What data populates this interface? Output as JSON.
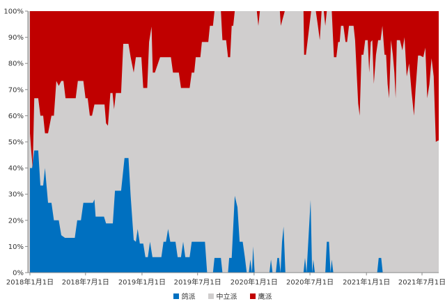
{
  "chart_data": {
    "type": "area",
    "stacked": "percent",
    "y_ticks": [
      "0%",
      "10%",
      "20%",
      "30%",
      "40%",
      "50%",
      "60%",
      "70%",
      "80%",
      "90%",
      "100%"
    ],
    "x_ticks": [
      {
        "label": "2018年1月1日",
        "date": "2018-01-01"
      },
      {
        "label": "2018年7月1日",
        "date": "2018-07-01"
      },
      {
        "label": "2019年1月1日",
        "date": "2019-01-01"
      },
      {
        "label": "2019年7月1日",
        "date": "2019-07-01"
      },
      {
        "label": "2020年1月1日",
        "date": "2020-01-01"
      },
      {
        "label": "2020年7月1日",
        "date": "2020-07-01"
      },
      {
        "label": "2021年1月1日",
        "date": "2021-01-01"
      },
      {
        "label": "2021年7月1日",
        "date": "2021-07-01"
      }
    ],
    "x_range": [
      "2018-01-01",
      "2021-10-01"
    ],
    "y_range": [
      0,
      100
    ],
    "series": [
      {
        "name": "鸽派",
        "color": "#0070C0",
        "points": [
          [
            "2018-01-01",
            40
          ],
          [
            "2018-01-08",
            40
          ],
          [
            "2018-01-15",
            46.7
          ],
          [
            "2018-01-28",
            46.7
          ],
          [
            "2018-02-04",
            33.3
          ],
          [
            "2018-02-13",
            33.3
          ],
          [
            "2018-02-19",
            40
          ],
          [
            "2018-03-01",
            26.7
          ],
          [
            "2018-03-12",
            26.7
          ],
          [
            "2018-03-20",
            20
          ],
          [
            "2018-04-05",
            20
          ],
          [
            "2018-04-13",
            14.3
          ],
          [
            "2018-04-25",
            13.3
          ],
          [
            "2018-05-27",
            13.3
          ],
          [
            "2018-06-04",
            20
          ],
          [
            "2018-06-16",
            20
          ],
          [
            "2018-06-24",
            26.7
          ],
          [
            "2018-07-25",
            26.7
          ],
          [
            "2018-07-30",
            28
          ],
          [
            "2018-08-03",
            21.4
          ],
          [
            "2018-08-30",
            21.4
          ],
          [
            "2018-09-06",
            18.8
          ],
          [
            "2018-09-28",
            18.8
          ],
          [
            "2018-10-05",
            31.3
          ],
          [
            "2018-10-25",
            31.3
          ],
          [
            "2018-11-05",
            43.8
          ],
          [
            "2018-11-18",
            43.8
          ],
          [
            "2018-11-25",
            29.4
          ],
          [
            "2018-12-05",
            12.5
          ],
          [
            "2018-12-12",
            11.8
          ],
          [
            "2018-12-18",
            16.7
          ],
          [
            "2018-12-25",
            11.1
          ],
          [
            "2019-01-05",
            11.1
          ],
          [
            "2019-01-12",
            5.9
          ],
          [
            "2019-01-20",
            5.9
          ],
          [
            "2019-01-27",
            11.8
          ],
          [
            "2019-02-04",
            5.9
          ],
          [
            "2019-03-05",
            5.9
          ],
          [
            "2019-03-12",
            11.8
          ],
          [
            "2019-03-20",
            11.8
          ],
          [
            "2019-03-27",
            16.7
          ],
          [
            "2019-04-03",
            11.8
          ],
          [
            "2019-04-20",
            11.8
          ],
          [
            "2019-04-27",
            5.9
          ],
          [
            "2019-05-08",
            5.9
          ],
          [
            "2019-05-15",
            11.8
          ],
          [
            "2019-05-22",
            5.9
          ],
          [
            "2019-06-05",
            5.9
          ],
          [
            "2019-06-12",
            11.8
          ],
          [
            "2019-07-25",
            11.8
          ],
          [
            "2019-08-01",
            0
          ],
          [
            "2019-08-20",
            0
          ],
          [
            "2019-08-25",
            5.6
          ],
          [
            "2019-09-15",
            5.6
          ],
          [
            "2019-09-20",
            0
          ],
          [
            "2019-10-08",
            0
          ],
          [
            "2019-10-12",
            5.6
          ],
          [
            "2019-10-20",
            5.6
          ],
          [
            "2019-10-30",
            29.4
          ],
          [
            "2019-11-08",
            25
          ],
          [
            "2019-11-15",
            11.8
          ],
          [
            "2019-11-25",
            11.8
          ],
          [
            "2019-12-02",
            5.9
          ],
          [
            "2019-12-08",
            0
          ],
          [
            "2019-12-15",
            0
          ],
          [
            "2019-12-20",
            5
          ],
          [
            "2019-12-25",
            0
          ],
          [
            "2019-12-29",
            10
          ],
          [
            "2020-01-03",
            0
          ],
          [
            "2020-02-20",
            0
          ],
          [
            "2020-02-25",
            5
          ],
          [
            "2020-03-01",
            0
          ],
          [
            "2020-03-12",
            0
          ],
          [
            "2020-03-17",
            5.6
          ],
          [
            "2020-03-22",
            5.6
          ],
          [
            "2020-03-27",
            0
          ],
          [
            "2020-04-01",
            11.8
          ],
          [
            "2020-04-06",
            17.6
          ],
          [
            "2020-04-12",
            0
          ],
          [
            "2020-06-10",
            0
          ],
          [
            "2020-06-15",
            5.6
          ],
          [
            "2020-06-20",
            0
          ],
          [
            "2020-07-03",
            27.8
          ],
          [
            "2020-07-08",
            0
          ],
          [
            "2020-07-12",
            5
          ],
          [
            "2020-07-17",
            0
          ],
          [
            "2020-08-20",
            0
          ],
          [
            "2020-08-25",
            11.8
          ],
          [
            "2020-09-01",
            11.8
          ],
          [
            "2020-09-06",
            0
          ],
          [
            "2020-09-10",
            5
          ],
          [
            "2020-09-15",
            0
          ],
          [
            "2021-02-05",
            0
          ],
          [
            "2021-02-10",
            5.6
          ],
          [
            "2021-02-18",
            5.6
          ],
          [
            "2021-02-23",
            0
          ],
          [
            "2021-10-01",
            0
          ]
        ]
      },
      {
        "name": "中立派",
        "color": "#D0CECE",
        "points": []
      },
      {
        "name": "鹰派",
        "color": "#C00000",
        "points": [
          [
            "2018-01-01",
            46.7
          ],
          [
            "2018-01-05",
            53.3
          ],
          [
            "2018-01-10",
            60
          ],
          [
            "2018-01-15",
            33.3
          ],
          [
            "2018-01-28",
            33.3
          ],
          [
            "2018-02-04",
            40
          ],
          [
            "2018-02-13",
            40
          ],
          [
            "2018-02-19",
            46.7
          ],
          [
            "2018-03-01",
            46.7
          ],
          [
            "2018-03-12",
            40
          ],
          [
            "2018-03-20",
            40
          ],
          [
            "2018-03-28",
            26.7
          ],
          [
            "2018-04-05",
            28.6
          ],
          [
            "2018-04-13",
            26.7
          ],
          [
            "2018-04-20",
            26.7
          ],
          [
            "2018-04-27",
            33.3
          ],
          [
            "2018-05-30",
            33.3
          ],
          [
            "2018-06-06",
            26.7
          ],
          [
            "2018-06-24",
            26.7
          ],
          [
            "2018-07-01",
            33.3
          ],
          [
            "2018-07-08",
            33.3
          ],
          [
            "2018-07-15",
            40
          ],
          [
            "2018-07-22",
            40
          ],
          [
            "2018-07-30",
            35.7
          ],
          [
            "2018-08-06",
            35.7
          ],
          [
            "2018-09-01",
            35.7
          ],
          [
            "2018-09-06",
            42.9
          ],
          [
            "2018-09-12",
            43.8
          ],
          [
            "2018-09-20",
            31.3
          ],
          [
            "2018-09-27",
            31.3
          ],
          [
            "2018-10-02",
            37.5
          ],
          [
            "2018-10-08",
            31.3
          ],
          [
            "2018-10-25",
            31.3
          ],
          [
            "2018-11-01",
            12.5
          ],
          [
            "2018-11-18",
            12.5
          ],
          [
            "2018-11-25",
            17.6
          ],
          [
            "2018-12-05",
            23.5
          ],
          [
            "2018-12-12",
            17.6
          ],
          [
            "2018-12-30",
            17.6
          ],
          [
            "2019-01-05",
            29.4
          ],
          [
            "2019-01-18",
            29.4
          ],
          [
            "2019-01-24",
            11.8
          ],
          [
            "2019-02-01",
            5.9
          ],
          [
            "2019-02-05",
            23.5
          ],
          [
            "2019-02-12",
            23.5
          ],
          [
            "2019-03-01",
            17.6
          ],
          [
            "2019-04-05",
            17.6
          ],
          [
            "2019-04-12",
            23.5
          ],
          [
            "2019-05-01",
            23.5
          ],
          [
            "2019-05-08",
            29.4
          ],
          [
            "2019-06-05",
            29.4
          ],
          [
            "2019-06-12",
            23.5
          ],
          [
            "2019-06-20",
            23.5
          ],
          [
            "2019-06-25",
            17.6
          ],
          [
            "2019-07-10",
            17.6
          ],
          [
            "2019-07-15",
            11.8
          ],
          [
            "2019-08-05",
            11.8
          ],
          [
            "2019-08-10",
            5.6
          ],
          [
            "2019-08-20",
            5.6
          ],
          [
            "2019-08-25",
            0
          ],
          [
            "2019-09-15",
            0
          ],
          [
            "2019-09-20",
            11.1
          ],
          [
            "2019-10-02",
            11.1
          ],
          [
            "2019-10-08",
            17.6
          ],
          [
            "2019-10-15",
            17.6
          ],
          [
            "2019-10-20",
            5.6
          ],
          [
            "2019-10-25",
            5.6
          ],
          [
            "2019-10-30",
            0
          ],
          [
            "2020-01-10",
            0
          ],
          [
            "2020-01-15",
            5.6
          ],
          [
            "2020-01-20",
            0
          ],
          [
            "2020-03-25",
            0
          ],
          [
            "2020-03-28",
            5.6
          ],
          [
            "2020-04-10",
            0
          ],
          [
            "2020-06-01",
            0
          ],
          [
            "2020-06-10",
            0
          ],
          [
            "2020-06-12",
            16.7
          ],
          [
            "2020-06-18",
            16.7
          ],
          [
            "2020-07-05",
            0
          ],
          [
            "2020-07-20",
            0
          ],
          [
            "2020-07-27",
            5.6
          ],
          [
            "2020-08-02",
            11.1
          ],
          [
            "2020-08-08",
            0
          ],
          [
            "2020-08-15",
            0
          ],
          [
            "2020-08-20",
            5.6
          ],
          [
            "2020-08-25",
            0
          ],
          [
            "2020-09-10",
            0
          ],
          [
            "2020-09-17",
            17.6
          ],
          [
            "2020-09-25",
            17.6
          ],
          [
            "2020-10-01",
            11.8
          ],
          [
            "2020-10-06",
            11.8
          ],
          [
            "2020-10-10",
            5.6
          ],
          [
            "2020-10-18",
            5.6
          ],
          [
            "2020-10-25",
            11.8
          ],
          [
            "2020-10-30",
            11.8
          ],
          [
            "2020-11-05",
            5.6
          ],
          [
            "2020-11-20",
            5.6
          ],
          [
            "2020-11-25",
            11.1
          ],
          [
            "2020-12-05",
            35.3
          ],
          [
            "2020-12-10",
            40
          ],
          [
            "2020-12-16",
            16.7
          ],
          [
            "2020-12-22",
            16.7
          ],
          [
            "2020-12-28",
            11.1
          ],
          [
            "2021-01-05",
            11.1
          ],
          [
            "2021-01-10",
            23.5
          ],
          [
            "2021-01-15",
            11.8
          ],
          [
            "2021-01-20",
            11.1
          ],
          [
            "2021-01-25",
            27.8
          ],
          [
            "2021-02-01",
            16.7
          ],
          [
            "2021-02-08",
            11.1
          ],
          [
            "2021-02-16",
            11.1
          ],
          [
            "2021-02-22",
            5.6
          ],
          [
            "2021-03-01",
            16.7
          ],
          [
            "2021-03-06",
            16.7
          ],
          [
            "2021-03-11",
            28
          ],
          [
            "2021-03-16",
            33.3
          ],
          [
            "2021-03-22",
            11.1
          ],
          [
            "2021-03-28",
            16.7
          ],
          [
            "2021-04-02",
            23.5
          ],
          [
            "2021-04-06",
            33.3
          ],
          [
            "2021-04-10",
            11.1
          ],
          [
            "2021-04-20",
            11.1
          ],
          [
            "2021-04-28",
            15
          ],
          [
            "2021-05-05",
            10
          ],
          [
            "2021-05-12",
            25
          ],
          [
            "2021-05-20",
            20
          ],
          [
            "2021-05-28",
            31
          ],
          [
            "2021-06-05",
            40
          ],
          [
            "2021-06-10",
            30
          ],
          [
            "2021-06-18",
            17
          ],
          [
            "2021-06-25",
            17
          ],
          [
            "2021-07-05",
            17.6
          ],
          [
            "2021-07-12",
            14
          ],
          [
            "2021-07-18",
            33.3
          ],
          [
            "2021-07-25",
            28
          ],
          [
            "2021-08-01",
            18
          ],
          [
            "2021-08-08",
            25
          ],
          [
            "2021-08-15",
            50
          ],
          [
            "2021-08-22",
            49.5
          ]
        ]
      }
    ]
  },
  "legend": [
    {
      "label": "鸽派",
      "color": "#0070C0"
    },
    {
      "label": "中立派",
      "color": "#D0CECE"
    },
    {
      "label": "鹰派",
      "color": "#C00000"
    }
  ]
}
